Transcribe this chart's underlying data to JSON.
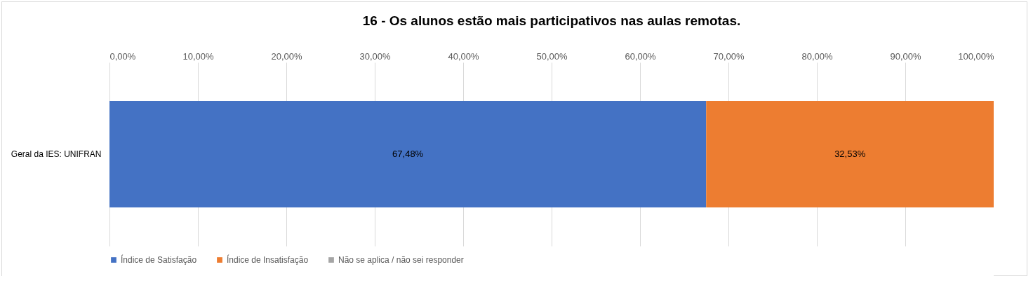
{
  "chart_data": {
    "type": "bar",
    "orientation": "horizontal",
    "stacked": true,
    "title": "16 - Os alunos estão mais participativos nas aulas remotas.",
    "categories": [
      "Geral da IES: UNIFRAN"
    ],
    "series": [
      {
        "name": "Índice de Satisfação",
        "color": "#4472c4",
        "values": [
          67.48
        ],
        "value_labels": [
          "67,48%"
        ]
      },
      {
        "name": "Índice de Insatisfação",
        "color": "#ed7d31",
        "values": [
          32.53
        ],
        "value_labels": [
          "32,53%"
        ]
      },
      {
        "name": "Não se aplica / não sei responder",
        "color": "#a5a5a5",
        "values": [
          null
        ],
        "value_labels": [
          null
        ]
      }
    ],
    "xlim": [
      0,
      100
    ],
    "xticks": [
      {
        "value": 0,
        "label": "0,00%"
      },
      {
        "value": 10,
        "label": "10,00%"
      },
      {
        "value": 20,
        "label": "20,00%"
      },
      {
        "value": 30,
        "label": "30,00%"
      },
      {
        "value": 40,
        "label": "40,00%"
      },
      {
        "value": 50,
        "label": "50,00%"
      },
      {
        "value": 60,
        "label": "60,00%"
      },
      {
        "value": 70,
        "label": "70,00%"
      },
      {
        "value": 80,
        "label": "80,00%"
      },
      {
        "value": 90,
        "label": "90,00%"
      },
      {
        "value": 100,
        "label": "100,00%"
      }
    ],
    "grid": "x",
    "legend": "bottom"
  }
}
